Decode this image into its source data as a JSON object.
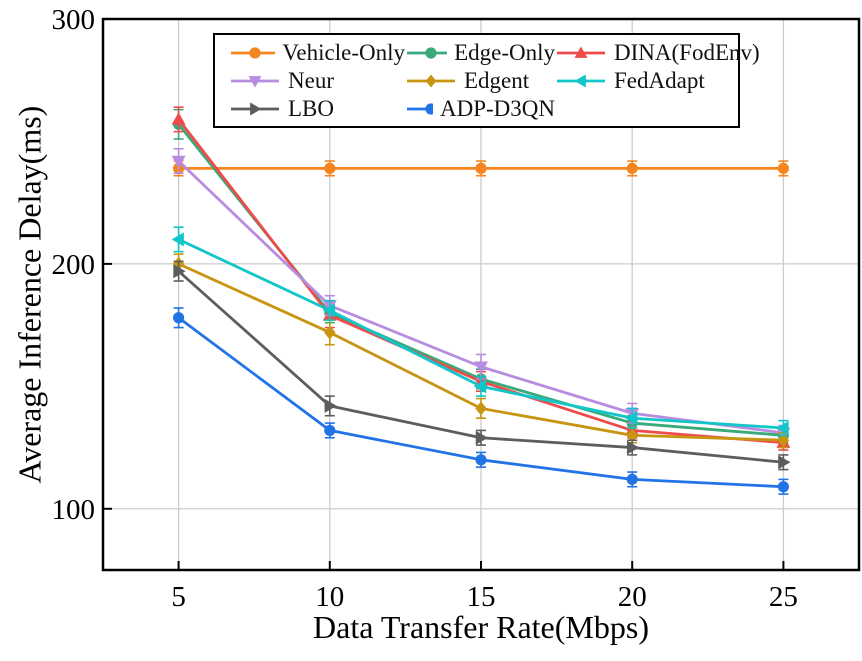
{
  "figure": {
    "background": "#ffffff",
    "spine_color": "#000000",
    "tick_label_color": "#000000"
  },
  "chart_data": {
    "type": "line",
    "title": "",
    "xlabel": "Data Transfer Rate(Mbps)",
    "ylabel": "Average Inference Delay(ms)",
    "x": [
      5,
      10,
      15,
      20,
      25
    ],
    "x_tick_labels": [
      "5",
      "10",
      "15",
      "20",
      "25"
    ],
    "y_ticks": [
      100,
      200,
      300
    ],
    "y_tick_labels": [
      "100",
      "200",
      "300"
    ],
    "xlim": [
      2.5,
      27.5
    ],
    "ylim": [
      75,
      300
    ],
    "grid": true,
    "grid_color": "#cccccc",
    "legend_position": "top-inside",
    "error_bars": true,
    "series": [
      {
        "name": "Vehicle-Only",
        "color": "#f5861f",
        "marker": "circle",
        "values": [
          239,
          239,
          239,
          239,
          239
        ],
        "errors": [
          3,
          3,
          3,
          3,
          3
        ]
      },
      {
        "name": "Edge-Only",
        "color": "#3aaa7a",
        "marker": "circle",
        "values": [
          257,
          180,
          153,
          135,
          130
        ],
        "errors": [
          6,
          4,
          4,
          3,
          3
        ]
      },
      {
        "name": "DINA(FodEnv)",
        "color": "#ef4b4b",
        "marker": "triangle-up",
        "values": [
          259,
          179,
          152,
          132,
          127
        ],
        "errors": [
          5,
          5,
          4,
          3,
          3
        ]
      },
      {
        "name": "Neur",
        "color": "#b88ce0",
        "marker": "triangle-down",
        "values": [
          242,
          183,
          158,
          139,
          131
        ],
        "errors": [
          5,
          4,
          5,
          4,
          3
        ]
      },
      {
        "name": "Edgent",
        "color": "#c79510",
        "marker": "diamond",
        "values": [
          200,
          172,
          141,
          130,
          128
        ],
        "errors": [
          4,
          5,
          4,
          3,
          3
        ]
      },
      {
        "name": "FedAdapt",
        "color": "#10c6c9",
        "marker": "triangle-left",
        "values": [
          210,
          181,
          150,
          137,
          133
        ],
        "errors": [
          5,
          4,
          4,
          4,
          3
        ]
      },
      {
        "name": "LBO",
        "color": "#5d5d5d",
        "marker": "triangle-right",
        "values": [
          197,
          142,
          129,
          125,
          119
        ],
        "errors": [
          4,
          4,
          3,
          3,
          3
        ]
      },
      {
        "name": "ADP-D3QN",
        "color": "#2173e6",
        "marker": "circle",
        "values": [
          178,
          132,
          120,
          112,
          109
        ],
        "errors": [
          4,
          3,
          3,
          3,
          3
        ]
      }
    ]
  }
}
